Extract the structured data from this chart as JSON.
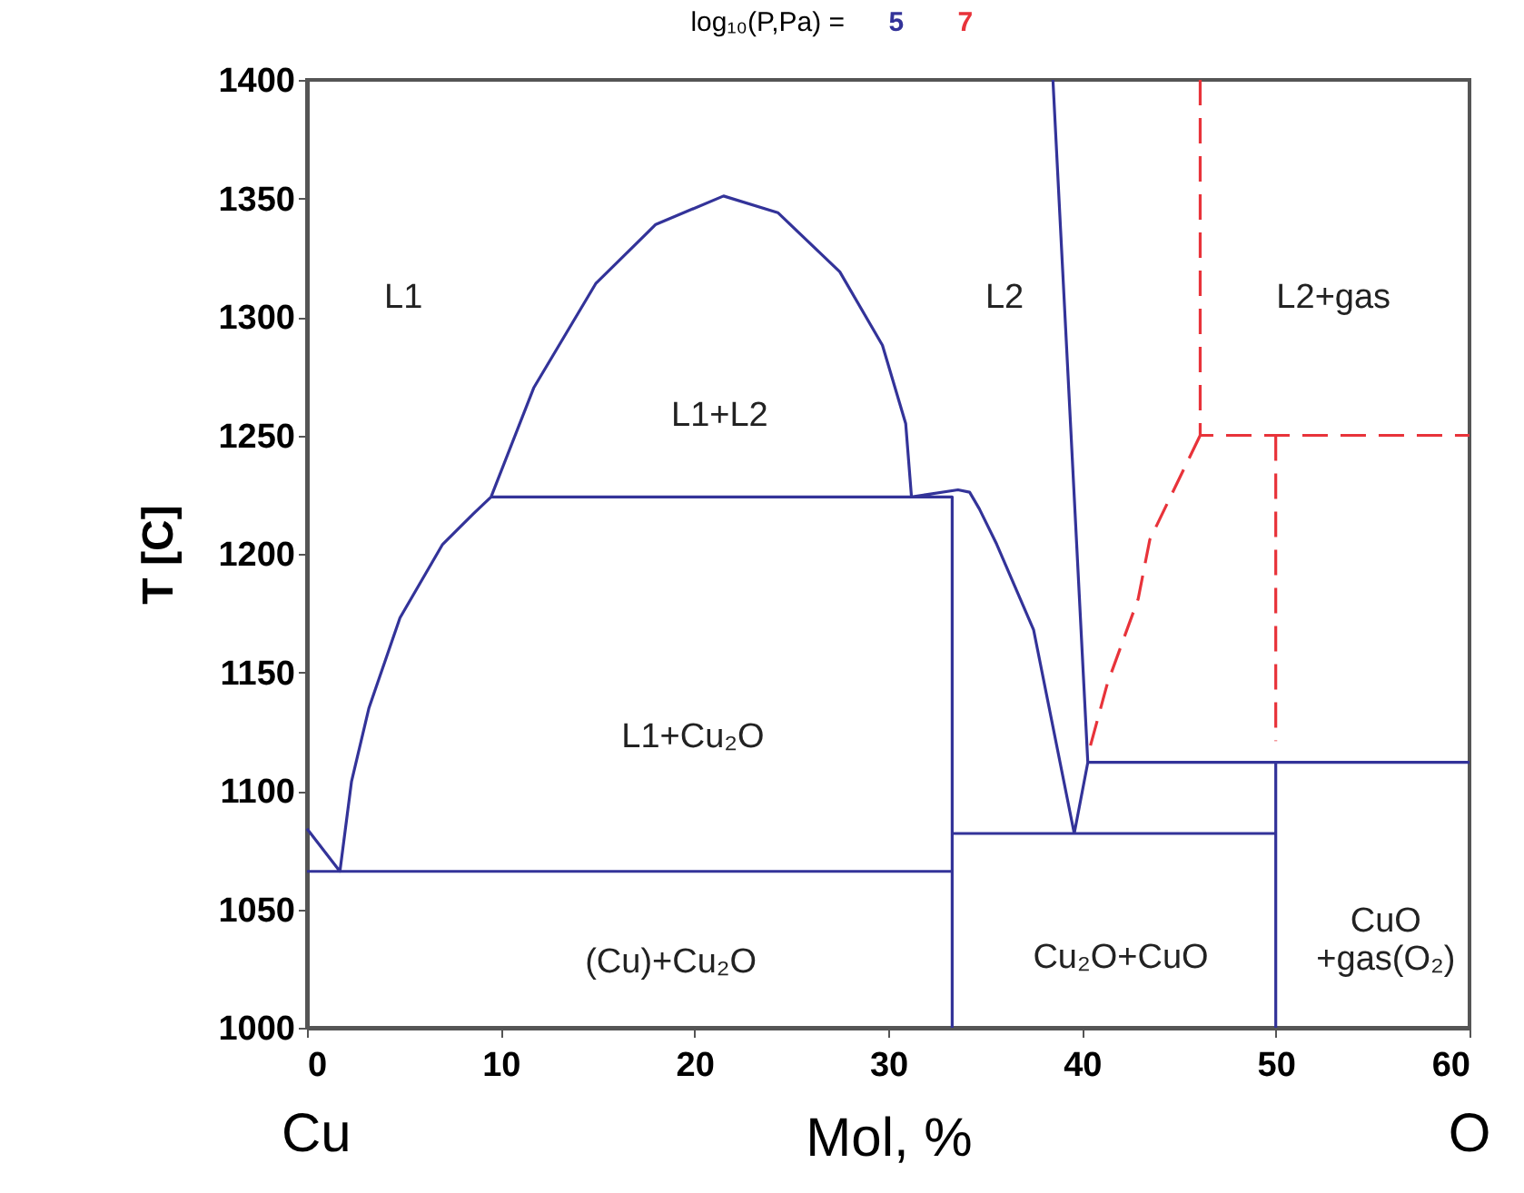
{
  "chart_data": {
    "type": "line",
    "xlabel": "Mol, %",
    "ylabel": "T [C]",
    "legend_title": "log₁₀(P,Pa) =",
    "legend": "top",
    "grid": false,
    "marker": "none",
    "xlim": [
      0,
      60
    ],
    "xticks": [
      0,
      10,
      20,
      30,
      40,
      50,
      60
    ],
    "ylim": [
      1000,
      1400
    ],
    "yticks": [
      1000,
      1050,
      1100,
      1150,
      1200,
      1250,
      1300,
      1350,
      1400
    ],
    "series": [
      {
        "name": "5",
        "color": "#333399",
        "line_style": "solid",
        "x": [
          0,
          1.7,
          2.3,
          3.2,
          4.8,
          7,
          8.6,
          9.5,
          11.7,
          14.9,
          18,
          21.5,
          24.3,
          27.5,
          29.7,
          30.9,
          31.2,
          33.6,
          34.2,
          34.7,
          35.6,
          37.5,
          39.6,
          40.3,
          38.5,
          null,
          9.5,
          33.3,
          33.3,
          null,
          0,
          33.3,
          null,
          33.3,
          50,
          null,
          40.3,
          60,
          null,
          50,
          50
        ],
        "values": [
          1084,
          1066,
          1104,
          1135,
          1173,
          1204,
          1217,
          1224,
          1270,
          1314,
          1339,
          1351,
          1344,
          1319,
          1288,
          1255,
          1224,
          1227,
          1226,
          1219,
          1204,
          1168,
          1082,
          1112,
          1400,
          null,
          1224,
          1224,
          1000,
          null,
          1066,
          1066,
          null,
          1082,
          1082,
          null,
          1112,
          1112,
          null,
          1000,
          1112
        ]
      },
      {
        "name": "7",
        "color": "#e8333a",
        "line_style": "dashed",
        "x": [
          46.1,
          46.1,
          60,
          null,
          46.1,
          43.5,
          42.9,
          41.3,
          40.3,
          null,
          50,
          50
        ],
        "values": [
          1400,
          1250,
          1250,
          null,
          1250,
          1206,
          1181,
          1145,
          1115,
          null,
          1250,
          1121
        ]
      }
    ],
    "annotations": [
      "L1",
      "L2",
      "L2+gas",
      "L1+L2",
      "L1+Cu₂O",
      "(Cu)+Cu₂O",
      "Cu₂O+CuO",
      "CuO\n+gas(O₂)",
      "Cu",
      "O"
    ]
  }
}
